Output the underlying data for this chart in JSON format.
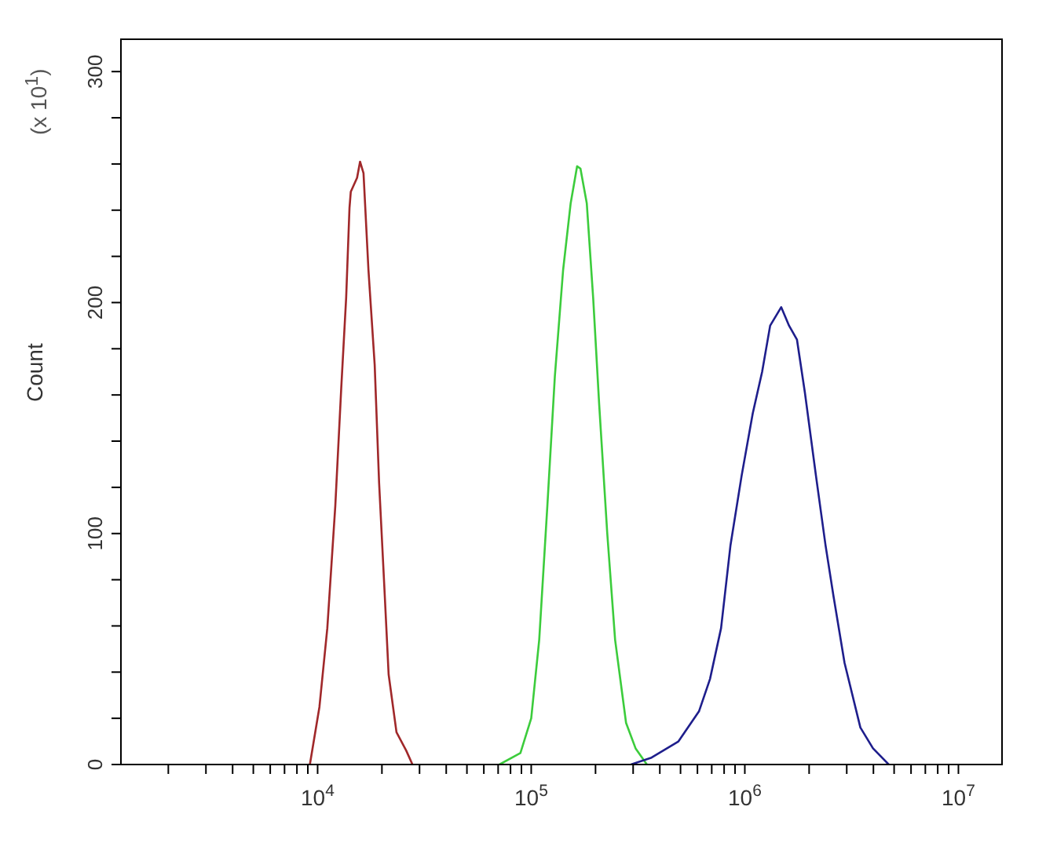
{
  "chart_data": {
    "type": "line",
    "ylabel": "Count",
    "annotations": [
      "(x 10$^{1}$)"
    ],
    "log": "x",
    "grid": false,
    "legend": false,
    "marker": "none",
    "xlim": [
      1200,
      16000000
    ],
    "xticks": [
      {
        "value": 2000,
        "label": null
      },
      {
        "value": 3000,
        "label": null
      },
      {
        "value": 4000,
        "label": null
      },
      {
        "value": 5000,
        "label": null
      },
      {
        "value": 6000,
        "label": null
      },
      {
        "value": 7000,
        "label": null
      },
      {
        "value": 8000,
        "label": null
      },
      {
        "value": 9000,
        "label": null
      },
      {
        "value": 10000,
        "label": "10$^{4}$"
      },
      {
        "value": 20000,
        "label": null
      },
      {
        "value": 30000,
        "label": null
      },
      {
        "value": 40000,
        "label": null
      },
      {
        "value": 50000,
        "label": null
      },
      {
        "value": 60000,
        "label": null
      },
      {
        "value": 70000,
        "label": null
      },
      {
        "value": 80000,
        "label": null
      },
      {
        "value": 90000,
        "label": null
      },
      {
        "value": 100000,
        "label": "10$^{5}$"
      },
      {
        "value": 200000,
        "label": null
      },
      {
        "value": 300000,
        "label": null
      },
      {
        "value": 400000,
        "label": null
      },
      {
        "value": 500000,
        "label": null
      },
      {
        "value": 600000,
        "label": null
      },
      {
        "value": 700000,
        "label": null
      },
      {
        "value": 800000,
        "label": null
      },
      {
        "value": 900000,
        "label": null
      },
      {
        "value": 1000000,
        "label": "10$^{6}$"
      },
      {
        "value": 2000000,
        "label": null
      },
      {
        "value": 3000000,
        "label": null
      },
      {
        "value": 4000000,
        "label": null
      },
      {
        "value": 5000000,
        "label": null
      },
      {
        "value": 6000000,
        "label": null
      },
      {
        "value": 7000000,
        "label": null
      },
      {
        "value": 8000000,
        "label": null
      },
      {
        "value": 9000000,
        "label": null
      },
      {
        "value": 10000000,
        "label": "10$^{7}$"
      }
    ],
    "ylim": [
      0,
      314
    ],
    "yticks": [
      0,
      {
        "value": 20,
        "label": null
      },
      {
        "value": 40,
        "label": null
      },
      {
        "value": 60,
        "label": null
      },
      {
        "value": 80,
        "label": null
      },
      100,
      {
        "value": 120,
        "label": null
      },
      {
        "value": 140,
        "label": null
      },
      {
        "value": 160,
        "label": null
      },
      {
        "value": 180,
        "label": null
      },
      200,
      {
        "value": 220,
        "label": null
      },
      {
        "value": 240,
        "label": null
      },
      {
        "value": 260,
        "label": null
      },
      {
        "value": 280,
        "label": null
      },
      300
    ],
    "series": [
      {
        "color": "#a0282a",
        "x": [
          9200,
          10200,
          11100,
          12100,
          12900,
          13600,
          14100,
          14300,
          15300,
          15800,
          16400,
          17300,
          18500,
          19400,
          20500,
          21500,
          23400,
          26000,
          27800
        ],
        "values": [
          0,
          25,
          59,
          112,
          163,
          202,
          241,
          248,
          254,
          261,
          256,
          214,
          173,
          122,
          78,
          39,
          14,
          6,
          0
        ]
      },
      {
        "color": "#3ccc3c",
        "x": [
          71000,
          89000,
          100000,
          109000,
          119000,
          129000,
          141000,
          153000,
          164000,
          170000,
          182000,
          195000,
          208000,
          227000,
          247000,
          278000,
          308000,
          348000
        ],
        "values": [
          0,
          5,
          20,
          54,
          112,
          168,
          214,
          243,
          259,
          258,
          243,
          202,
          156,
          100,
          54,
          18,
          7,
          0
        ]
      },
      {
        "color": "#1e1e8c",
        "x": [
          293000,
          366000,
          489000,
          610000,
          687000,
          774000,
          857000,
          966000,
          1089000,
          1205000,
          1314000,
          1480000,
          1611000,
          1754000,
          1911000,
          2153000,
          2386000,
          2600000,
          2930000,
          3475000,
          3981000,
          4718000
        ],
        "values": [
          0,
          3,
          10,
          23,
          37,
          59,
          95,
          125,
          152,
          170,
          190,
          198,
          190,
          184,
          161,
          125,
          95,
          73,
          44,
          16,
          7,
          0
        ]
      }
    ]
  }
}
